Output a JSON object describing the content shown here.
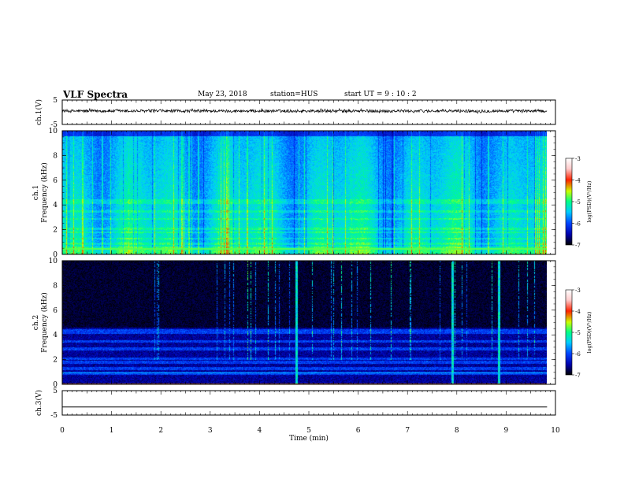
{
  "header": {
    "title": "VLF Spectra",
    "date": "May 23, 2018",
    "station": "station=HUS",
    "start": "start UT =  9 : 10 : 2"
  },
  "chart_data": [
    {
      "type": "line",
      "panel": "ch1-waveform",
      "ylabel": "ch.1(V)",
      "ylim": [
        -5,
        5
      ],
      "yticks": [
        "5",
        "-5"
      ],
      "xlim": [
        0,
        10
      ],
      "series": [
        {
          "baseline": 0.5,
          "noise_amplitude": 0.6
        }
      ]
    },
    {
      "type": "heatmap",
      "panel": "ch1-spectrogram",
      "ylabel": "ch.1 Frequency (kHz)",
      "ylim": [
        0,
        10
      ],
      "yticks": [
        "0",
        "2",
        "4",
        "6",
        "8",
        "10"
      ],
      "xlim": [
        0,
        10
      ],
      "data_end_min": 9.83,
      "colorbar": {
        "label": "log(PSD)(V²/Hz)",
        "range": [
          -7,
          -3
        ],
        "ticks": [
          "-3",
          "-4",
          "-5",
          "-6",
          "-7"
        ],
        "colors": [
          "#000000",
          "#0000aa",
          "#0044ff",
          "#00ccff",
          "#00ff88",
          "#ccff00",
          "#ff2200",
          "#ffcccc",
          "#ffffff"
        ]
      }
    },
    {
      "type": "heatmap",
      "panel": "ch2-spectrogram",
      "ylabel": "ch.2 Frequency (kHz)",
      "ylim": [
        0,
        10
      ],
      "yticks": [
        "0",
        "2",
        "4",
        "6",
        "8",
        "10"
      ],
      "xlim": [
        0,
        10
      ],
      "data_end_min": 9.83,
      "bright_spikes_min": [
        4.75,
        7.9,
        8.85
      ],
      "colorbar": {
        "label": "log(PSD)(V²/Hz)",
        "range": [
          -7,
          -3
        ],
        "ticks": [
          "-3",
          "-4",
          "-5",
          "-6",
          "-7"
        ]
      }
    },
    {
      "type": "line",
      "panel": "ch3-waveform",
      "ylabel": "ch.3(V)",
      "ylim": [
        -5,
        5
      ],
      "yticks": [
        "5",
        "-5"
      ],
      "xlim": [
        0,
        10
      ],
      "series": [
        {
          "baseline": -1.7,
          "noise_amplitude": 0
        }
      ]
    }
  ],
  "xaxis": {
    "label": "Time (min)",
    "ticks": [
      "0",
      "1",
      "2",
      "3",
      "4",
      "5",
      "6",
      "7",
      "8",
      "9",
      "10"
    ]
  }
}
